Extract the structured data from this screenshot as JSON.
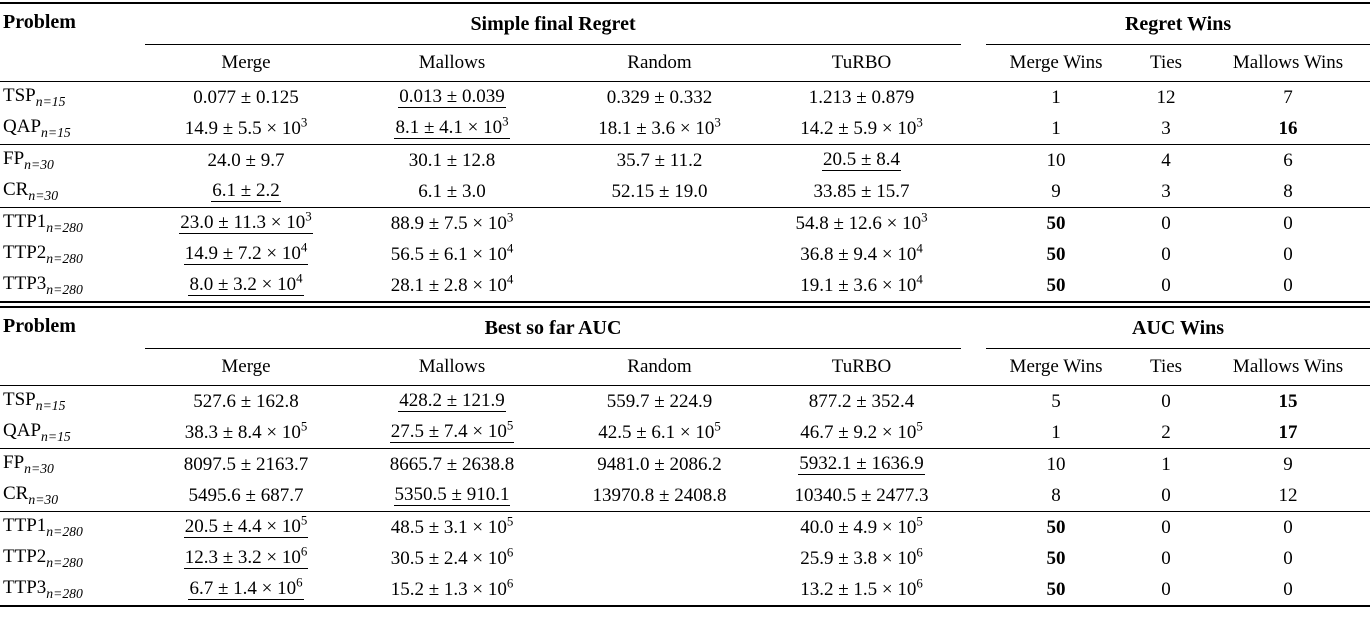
{
  "colors": {
    "background": "#ffffff",
    "text": "#000000",
    "rule": "#000000"
  },
  "tables": [
    {
      "problem_header": "Problem",
      "group_header": "Simple final Regret",
      "wins_header": "Regret Wins",
      "method_columns": [
        "Merge",
        "Mallows",
        "Random",
        "TuRBO"
      ],
      "wins_columns": [
        "Merge Wins",
        "Ties",
        "Mallows Wins"
      ],
      "row_groups": [
        {
          "rows": [
            {
              "problem": {
                "name": "TSP",
                "sub": "n=15"
              },
              "values": [
                {
                  "text": "0.077 ± 0.125"
                },
                {
                  "text": "0.013 ± 0.039",
                  "underline": true
                },
                {
                  "text": "0.329 ± 0.332"
                },
                {
                  "text": "1.213 ± 0.879"
                }
              ],
              "wins": [
                {
                  "text": "1"
                },
                {
                  "text": "12"
                },
                {
                  "text": "7"
                }
              ]
            },
            {
              "problem": {
                "name": "QAP",
                "sub": "n=15"
              },
              "values": [
                {
                  "text": "14.9 ± 5.5 × 10",
                  "exp": "3"
                },
                {
                  "text": "8.1 ± 4.1 × 10",
                  "exp": "3",
                  "underline": true
                },
                {
                  "text": "18.1 ± 3.6 × 10",
                  "exp": "3"
                },
                {
                  "text": "14.2 ± 5.9 × 10",
                  "exp": "3"
                }
              ],
              "wins": [
                {
                  "text": "1"
                },
                {
                  "text": "3"
                },
                {
                  "text": "16",
                  "bold": true
                }
              ]
            }
          ]
        },
        {
          "rows": [
            {
              "problem": {
                "name": "FP",
                "sub": "n=30"
              },
              "values": [
                {
                  "text": "24.0 ± 9.7"
                },
                {
                  "text": "30.1 ± 12.8"
                },
                {
                  "text": "35.7 ± 11.2"
                },
                {
                  "text": "20.5 ± 8.4",
                  "underline": true
                }
              ],
              "wins": [
                {
                  "text": "10"
                },
                {
                  "text": "4"
                },
                {
                  "text": "6"
                }
              ]
            },
            {
              "problem": {
                "name": "CR",
                "sub": "n=30"
              },
              "values": [
                {
                  "text": "6.1 ± 2.2",
                  "underline": true
                },
                {
                  "text": "6.1 ± 3.0"
                },
                {
                  "text": "52.15 ± 19.0"
                },
                {
                  "text": "33.85 ± 15.7"
                }
              ],
              "wins": [
                {
                  "text": "9"
                },
                {
                  "text": "3"
                },
                {
                  "text": "8"
                }
              ]
            }
          ]
        },
        {
          "rows": [
            {
              "problem": {
                "name": "TTP1",
                "sub": "n=280"
              },
              "values": [
                {
                  "text": "23.0 ± 11.3 × 10",
                  "exp": "3",
                  "underline": true
                },
                {
                  "text": "88.9 ± 7.5 × 10",
                  "exp": "3"
                },
                {
                  "text": ""
                },
                {
                  "text": "54.8 ± 12.6 × 10",
                  "exp": "3"
                }
              ],
              "wins": [
                {
                  "text": "50",
                  "bold": true
                },
                {
                  "text": "0"
                },
                {
                  "text": "0"
                }
              ]
            },
            {
              "problem": {
                "name": "TTP2",
                "sub": "n=280"
              },
              "values": [
                {
                  "text": "14.9 ± 7.2 × 10",
                  "exp": "4",
                  "underline": true
                },
                {
                  "text": "56.5 ± 6.1 × 10",
                  "exp": "4"
                },
                {
                  "text": ""
                },
                {
                  "text": "36.8 ± 9.4 × 10",
                  "exp": "4"
                }
              ],
              "wins": [
                {
                  "text": "50",
                  "bold": true
                },
                {
                  "text": "0"
                },
                {
                  "text": "0"
                }
              ]
            },
            {
              "problem": {
                "name": "TTP3",
                "sub": "n=280"
              },
              "values": [
                {
                  "text": "8.0 ± 3.2 × 10",
                  "exp": "4",
                  "underline": true
                },
                {
                  "text": "28.1 ± 2.8 × 10",
                  "exp": "4"
                },
                {
                  "text": ""
                },
                {
                  "text": "19.1 ± 3.6 × 10",
                  "exp": "4"
                }
              ],
              "wins": [
                {
                  "text": "50",
                  "bold": true
                },
                {
                  "text": "0"
                },
                {
                  "text": "0"
                }
              ]
            }
          ]
        }
      ]
    },
    {
      "problem_header": "Problem",
      "group_header": "Best so far AUC",
      "wins_header": "AUC Wins",
      "method_columns": [
        "Merge",
        "Mallows",
        "Random",
        "TuRBO"
      ],
      "wins_columns": [
        "Merge Wins",
        "Ties",
        "Mallows Wins"
      ],
      "row_groups": [
        {
          "rows": [
            {
              "problem": {
                "name": "TSP",
                "sub": "n=15"
              },
              "values": [
                {
                  "text": "527.6 ± 162.8"
                },
                {
                  "text": "428.2 ± 121.9",
                  "underline": true
                },
                {
                  "text": "559.7 ± 224.9"
                },
                {
                  "text": "877.2 ± 352.4"
                }
              ],
              "wins": [
                {
                  "text": "5"
                },
                {
                  "text": "0"
                },
                {
                  "text": "15",
                  "bold": true
                }
              ]
            },
            {
              "problem": {
                "name": "QAP",
                "sub": "n=15"
              },
              "values": [
                {
                  "text": "38.3 ± 8.4 × 10",
                  "exp": "5"
                },
                {
                  "text": "27.5 ± 7.4 × 10",
                  "exp": "5",
                  "underline": true
                },
                {
                  "text": "42.5 ± 6.1 × 10",
                  "exp": "5"
                },
                {
                  "text": "46.7 ± 9.2 × 10",
                  "exp": "5"
                }
              ],
              "wins": [
                {
                  "text": "1"
                },
                {
                  "text": "2"
                },
                {
                  "text": "17",
                  "bold": true
                }
              ]
            }
          ]
        },
        {
          "rows": [
            {
              "problem": {
                "name": "FP",
                "sub": "n=30"
              },
              "values": [
                {
                  "text": "8097.5 ± 2163.7"
                },
                {
                  "text": "8665.7 ± 2638.8"
                },
                {
                  "text": "9481.0 ± 2086.2"
                },
                {
                  "text": "5932.1 ± 1636.9",
                  "underline": true
                }
              ],
              "wins": [
                {
                  "text": "10"
                },
                {
                  "text": "1"
                },
                {
                  "text": "9"
                }
              ]
            },
            {
              "problem": {
                "name": "CR",
                "sub": "n=30"
              },
              "values": [
                {
                  "text": "5495.6 ± 687.7"
                },
                {
                  "text": "5350.5 ± 910.1",
                  "underline": true
                },
                {
                  "text": "13970.8 ± 2408.8"
                },
                {
                  "text": "10340.5 ± 2477.3"
                }
              ],
              "wins": [
                {
                  "text": "8"
                },
                {
                  "text": "0"
                },
                {
                  "text": "12"
                }
              ]
            }
          ]
        },
        {
          "rows": [
            {
              "problem": {
                "name": "TTP1",
                "sub": "n=280"
              },
              "values": [
                {
                  "text": "20.5 ± 4.4 × 10",
                  "exp": "5",
                  "underline": true
                },
                {
                  "text": "48.5 ± 3.1 × 10",
                  "exp": "5"
                },
                {
                  "text": ""
                },
                {
                  "text": "40.0 ± 4.9 × 10",
                  "exp": "5"
                }
              ],
              "wins": [
                {
                  "text": "50",
                  "bold": true
                },
                {
                  "text": "0"
                },
                {
                  "text": "0"
                }
              ]
            },
            {
              "problem": {
                "name": "TTP2",
                "sub": "n=280"
              },
              "values": [
                {
                  "text": "12.3 ± 3.2 × 10",
                  "exp": "6",
                  "underline": true
                },
                {
                  "text": "30.5 ± 2.4 × 10",
                  "exp": "6"
                },
                {
                  "text": ""
                },
                {
                  "text": "25.9 ± 3.8 × 10",
                  "exp": "6"
                }
              ],
              "wins": [
                {
                  "text": "50",
                  "bold": true
                },
                {
                  "text": "0"
                },
                {
                  "text": "0"
                }
              ]
            },
            {
              "problem": {
                "name": "TTP3",
                "sub": "n=280"
              },
              "values": [
                {
                  "text": "6.7 ± 1.4 × 10",
                  "exp": "6",
                  "underline": true
                },
                {
                  "text": "15.2 ± 1.3 × 10",
                  "exp": "6"
                },
                {
                  "text": ""
                },
                {
                  "text": "13.2 ± 1.5 × 10",
                  "exp": "6"
                }
              ],
              "wins": [
                {
                  "text": "50",
                  "bold": true
                },
                {
                  "text": "0"
                },
                {
                  "text": "0"
                }
              ]
            }
          ]
        }
      ]
    }
  ]
}
